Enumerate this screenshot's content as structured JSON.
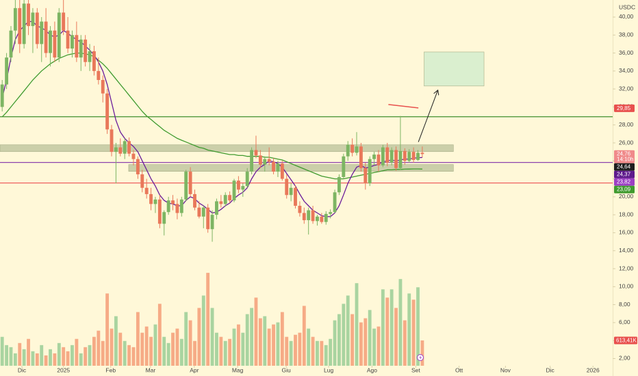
{
  "chart_data": {
    "type": "candlestick",
    "currency": "USDC",
    "up_color": "#7db563",
    "down_color": "#e9785a",
    "candles": [
      [
        30,
        33,
        29.5,
        32.5
      ],
      [
        32.5,
        36,
        32,
        35.5
      ],
      [
        35.5,
        39,
        35,
        38.5
      ],
      [
        38.5,
        42,
        37,
        41
      ],
      [
        41,
        43,
        36,
        37
      ],
      [
        37,
        42,
        36.5,
        41.5
      ],
      [
        41.5,
        43,
        38,
        39
      ],
      [
        39,
        41,
        36,
        40.5
      ],
      [
        40.5,
        41,
        36.5,
        37
      ],
      [
        37,
        40,
        35,
        39.5
      ],
      [
        39.5,
        41,
        35.5,
        36
      ],
      [
        36,
        39,
        34.5,
        38.5
      ],
      [
        38.5,
        39.5,
        35,
        35.5
      ],
      [
        35.5,
        41,
        35,
        40.5
      ],
      [
        40.5,
        42,
        38,
        38.5
      ],
      [
        38.5,
        40,
        36,
        36.5
      ],
      [
        36.5,
        38.5,
        35.5,
        38
      ],
      [
        38,
        39.5,
        35,
        35.5
      ],
      [
        35.5,
        38,
        34,
        37.5
      ],
      [
        37.5,
        38,
        34.5,
        35
      ],
      [
        35,
        37,
        34,
        36.2
      ],
      [
        36.2,
        36.8,
        33.5,
        34
      ],
      [
        34,
        35.5,
        32.5,
        33
      ],
      [
        33,
        33.5,
        30.5,
        31.5
      ],
      [
        31.5,
        32,
        27,
        27.5
      ],
      [
        27.5,
        28,
        24.5,
        25
      ],
      [
        25,
        26,
        21.5,
        25.5
      ],
      [
        25.5,
        26.5,
        24.5,
        24.8
      ],
      [
        24.8,
        26.5,
        24.2,
        26.2
      ],
      [
        26.2,
        26.6,
        24.5,
        24.8
      ],
      [
        24.8,
        25.2,
        23.5,
        24.2
      ],
      [
        24.2,
        24.5,
        22,
        22.5
      ],
      [
        22.5,
        23,
        20.5,
        21
      ],
      [
        21,
        22,
        19.8,
        20.3
      ],
      [
        20.3,
        21,
        18.5,
        19.2
      ],
      [
        19.2,
        20,
        18.2,
        19.7
      ],
      [
        19.7,
        20.2,
        16.5,
        17
      ],
      [
        17,
        18.5,
        15.7,
        18.3
      ],
      [
        18.3,
        20,
        18,
        19.6
      ],
      [
        19.6,
        20.2,
        18.5,
        19.2
      ],
      [
        19.2,
        19.8,
        17.5,
        18.2
      ],
      [
        18.2,
        20,
        17.8,
        19.7
      ],
      [
        19.7,
        23,
        19.5,
        22.8
      ],
      [
        22.8,
        23.3,
        20,
        20.3
      ],
      [
        20.3,
        20.8,
        18.5,
        18.8
      ],
      [
        18.8,
        19.5,
        17.6,
        17.8
      ],
      [
        17.8,
        19,
        16.5,
        18.8
      ],
      [
        18.8,
        19.2,
        16,
        16.4
      ],
      [
        16.4,
        18.5,
        15,
        18
      ],
      [
        18,
        19.8,
        17.5,
        19.5
      ],
      [
        19.5,
        20.2,
        18.8,
        19.2
      ],
      [
        19.2,
        20.5,
        18.9,
        20.2
      ],
      [
        20.2,
        20.6,
        19.3,
        19.6
      ],
      [
        19.6,
        22,
        19.4,
        21.8
      ],
      [
        21.8,
        22.3,
        20.4,
        20.8
      ],
      [
        20.8,
        21.5,
        20,
        21.2
      ],
      [
        21.2,
        23.2,
        21,
        22.8
      ],
      [
        22.8,
        25.5,
        22.5,
        25.2
      ],
      [
        25.2,
        26.8,
        24.3,
        24.6
      ],
      [
        24.6,
        25.2,
        23.2,
        23.6
      ],
      [
        23.6,
        24.5,
        22.8,
        24.2
      ],
      [
        24.2,
        25.5,
        23.5,
        23.9
      ],
      [
        23.9,
        24.3,
        22.5,
        22.8
      ],
      [
        22.8,
        24,
        22.2,
        23.7
      ],
      [
        23.7,
        24,
        21.8,
        22
      ],
      [
        22,
        22.5,
        19.8,
        20.2
      ],
      [
        20.2,
        21.5,
        19.5,
        21
      ],
      [
        21,
        21.3,
        18.7,
        19
      ],
      [
        19,
        19.5,
        17.8,
        18.2
      ],
      [
        18.2,
        18.8,
        17,
        17.4
      ],
      [
        17.4,
        18.8,
        15.8,
        18.5
      ],
      [
        18.5,
        19,
        17,
        17.3
      ],
      [
        17.3,
        18,
        16.8,
        17.8
      ],
      [
        17.8,
        18.2,
        17,
        17.2
      ],
      [
        17.2,
        18.4,
        16.9,
        18.1
      ],
      [
        18.1,
        18.6,
        17.6,
        18.3
      ],
      [
        18.3,
        20.8,
        18.2,
        20.5
      ],
      [
        20.5,
        22.5,
        20.2,
        22.2
      ],
      [
        22.2,
        24.8,
        22,
        24.5
      ],
      [
        24.5,
        26.2,
        24,
        25.8
      ],
      [
        25.8,
        26.5,
        24.5,
        24.9
      ],
      [
        24.9,
        27.2,
        24.6,
        25.6
      ],
      [
        25.6,
        26,
        22.8,
        23.2
      ],
      [
        23.2,
        23.8,
        20.8,
        21.5
      ],
      [
        21.5,
        24.5,
        21.2,
        24.2
      ],
      [
        24.2,
        25,
        23.5,
        24.7
      ],
      [
        24.7,
        25.2,
        22.8,
        23.5
      ],
      [
        23.5,
        25.8,
        23.3,
        25.5
      ],
      [
        25.5,
        26,
        23.4,
        23.8
      ],
      [
        23.8,
        25.5,
        23.5,
        25.2
      ],
      [
        25.2,
        25.6,
        22.9,
        23.2
      ],
      [
        23.2,
        29,
        23,
        25.1
      ],
      [
        25.1,
        25.4,
        23.6,
        24
      ],
      [
        24,
        25.3,
        23.8,
        25
      ],
      [
        25,
        25.5,
        23.8,
        24.1
      ],
      [
        24.1,
        25.2,
        24,
        24.9
      ],
      [
        24.9,
        25.6,
        24.4,
        24.76
      ]
    ],
    "volume": {
      "up_color": "#a9d4a0",
      "down_color": "#f6ab86",
      "vlim": [
        0,
        2500
      ],
      "values": [
        700,
        500,
        450,
        300,
        550,
        400,
        650,
        350,
        300,
        500,
        250,
        400,
        300,
        550,
        450,
        350,
        500,
        650,
        300,
        450,
        500,
        700,
        850,
        600,
        1750,
        900,
        1200,
        800,
        600,
        500,
        450,
        1300,
        800,
        950,
        700,
        1000,
        1500,
        700,
        550,
        800,
        900,
        650,
        1300,
        1100,
        600,
        1400,
        1700,
        2250,
        1400,
        800,
        700,
        600,
        650,
        900,
        1000,
        800,
        1250,
        1400,
        1650,
        1150,
        1200,
        900,
        1000,
        1050,
        1300,
        700,
        600,
        750,
        800,
        1450,
        900,
        700,
        600,
        600,
        500,
        650,
        1100,
        1250,
        1500,
        1700,
        1250,
        2000,
        1050,
        1150,
        1350,
        900,
        950,
        1850,
        1650,
        1850,
        1400,
        2100,
        1100,
        1750,
        1600,
        1900,
        613.41
      ],
      "last_label": {
        "value": 613.41,
        "label": "613,41K",
        "color": "#e8504d"
      }
    },
    "moving_averages": [
      {
        "color": "#3f9a2e",
        "values": [
          28.9,
          29.4,
          30,
          30.6,
          31.2,
          31.8,
          32.4,
          33,
          33.5,
          34,
          34.4,
          34.8,
          35.1,
          35.4,
          35.6,
          35.8,
          35.9,
          36,
          36,
          35.9,
          35.8,
          35.6,
          35.2,
          34.8,
          34.3,
          33.7,
          33.1,
          32.5,
          31.9,
          31.3,
          30.7,
          30.1,
          29.5,
          29,
          28.6,
          28.2,
          27.8,
          27.4,
          27.1,
          26.8,
          26.5,
          26.3,
          26.1,
          25.9,
          25.7,
          25.5,
          25.4,
          25.2,
          25.1,
          25,
          24.9,
          24.8,
          24.7,
          24.7,
          24.6,
          24.6,
          24.5,
          24.5,
          24.5,
          24.5,
          24.4,
          24.4,
          24.3,
          24.2,
          24.1,
          23.9,
          23.7,
          23.5,
          23.3,
          23.1,
          22.9,
          22.7,
          22.5,
          22.3,
          22.2,
          22.1,
          22,
          22,
          22,
          22.1,
          22.2,
          22.3,
          22.4,
          22.5,
          22.6,
          22.7,
          22.8,
          22.9,
          23,
          23,
          23.05,
          23.05,
          23.08,
          23.09,
          23.1,
          23.1,
          23.09
        ]
      },
      {
        "color": "#6a1b9a",
        "values": [
          31,
          33,
          35.5,
          37.5,
          38.5,
          39,
          39.5,
          39.5,
          39,
          38.8,
          38.5,
          38,
          37.8,
          38,
          38.5,
          38.2,
          37.8,
          37.5,
          37.2,
          36.8,
          36.3,
          35.8,
          35,
          34,
          32.5,
          30.5,
          28.5,
          27.2,
          26.5,
          26,
          25.6,
          25,
          24,
          23,
          22,
          21.2,
          20.2,
          19.6,
          19.3,
          19.2,
          19,
          19,
          19.6,
          20,
          19.8,
          19.3,
          19,
          18.6,
          18.2,
          18.3,
          18.6,
          19,
          19.3,
          19.8,
          20.2,
          20.5,
          21,
          22,
          22.8,
          23.3,
          23.6,
          24,
          23.9,
          23.7,
          23.3,
          22.6,
          21.9,
          21.2,
          20.3,
          19.5,
          19,
          18.5,
          18.2,
          17.9,
          17.8,
          17.8,
          18.2,
          19,
          20.2,
          21.5,
          22.5,
          23.3,
          23.5,
          23.2,
          23.3,
          23.5,
          23.6,
          23.9,
          24,
          24.1,
          24,
          24.1,
          24.2,
          24.2,
          24.3,
          24.35,
          24.37
        ]
      }
    ],
    "xlim": [
      0,
      140
    ],
    "xticks": [
      {
        "value": 5,
        "label": "Dic"
      },
      {
        "value": 14.5,
        "label": "2025"
      },
      {
        "value": 25.3,
        "label": "Feb"
      },
      {
        "value": 34.4,
        "label": "Mar"
      },
      {
        "value": 44.4,
        "label": "Apr"
      },
      {
        "value": 54.3,
        "label": "Mag"
      },
      {
        "value": 65.4,
        "label": "Giu"
      },
      {
        "value": 75.1,
        "label": "Lug"
      },
      {
        "value": 85,
        "label": "Ago"
      },
      {
        "value": 95,
        "label": "Set"
      },
      {
        "value": 104.9,
        "label": "Ott"
      },
      {
        "value": 115.5,
        "label": "Nov"
      },
      {
        "value": 125.7,
        "label": "Dic"
      },
      {
        "value": 135.5,
        "label": "2026"
      }
    ],
    "ylim": [
      1.2,
      41.9
    ],
    "yticks": [
      {
        "value": 2,
        "label": "2,00"
      },
      {
        "value": 4,
        "label": "4,00"
      },
      {
        "value": 6,
        "label": "6,00"
      },
      {
        "value": 8,
        "label": "8,00"
      },
      {
        "value": 10,
        "label": "10,00"
      },
      {
        "value": 12,
        "label": "12,00"
      },
      {
        "value": 14,
        "label": "14,00"
      },
      {
        "value": 16,
        "label": "16,00"
      },
      {
        "value": 18,
        "label": "18,00"
      },
      {
        "value": 20,
        "label": "20,00"
      },
      {
        "value": 22,
        "label": "22,00"
      },
      {
        "value": 24,
        "label": "24,00"
      },
      {
        "value": 26,
        "label": "26,00"
      },
      {
        "value": 28,
        "label": "28,00"
      },
      {
        "value": 30,
        "label": "30,00"
      },
      {
        "value": 32,
        "label": "32,00"
      },
      {
        "value": 34,
        "label": "34,00"
      },
      {
        "value": 36,
        "label": "36,00"
      },
      {
        "value": 38,
        "label": "38,00"
      },
      {
        "value": 40,
        "label": "40,00"
      }
    ],
    "price_labels": [
      {
        "value": 29.85,
        "label": "29,85",
        "color": "#e8504d"
      },
      {
        "value": 24.76,
        "label": "24,76",
        "sublabel": "14:10h",
        "color": "#f08a8a"
      },
      {
        "value": 24.64,
        "label": "24,64",
        "color": "#1e1e1e"
      },
      {
        "value": 24.37,
        "label": "24,37",
        "color": "#5e1a8c"
      },
      {
        "value": 23.82,
        "label": "23,82",
        "color": "#9c3fc4"
      },
      {
        "value": 23.09,
        "label": "23,09",
        "color": "#3f9a2e"
      }
    ],
    "drawings": {
      "hlines": [
        {
          "value": 28.91,
          "color": "#3f8f2e"
        },
        {
          "value": 23.82,
          "color": "#8e44ad"
        },
        {
          "value": 21.54,
          "color": "#ef5f5f"
        }
      ],
      "zones": [
        {
          "x": [
            0,
            103.6
          ],
          "y": [
            25.03,
            25.79
          ],
          "color": "#b9c29a"
        },
        {
          "x": [
            29.4,
            103.6
          ],
          "y": [
            22.83,
            23.59
          ],
          "color": "#b9c29a"
        },
        {
          "x": [
            96.9,
            110.6
          ],
          "y": [
            32.33,
            36.12
          ],
          "color": "#cdeccc"
        }
      ],
      "segments": [
        {
          "x": [
            88.75,
            95.6
          ],
          "y": [
            30.27,
            29.89
          ],
          "color": "#e8504d"
        }
      ],
      "arrows": [
        {
          "x": [
            95.6,
            100
          ],
          "y": [
            26.1,
            31.8
          ],
          "color": "#222"
        }
      ]
    }
  }
}
